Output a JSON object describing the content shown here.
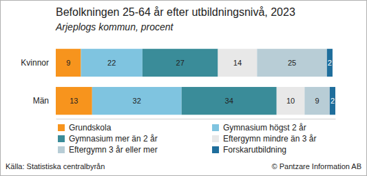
{
  "chart_data": {
    "type": "bar",
    "title": "Befolkningen 25-64 år efter utbildningsnivå, 2023",
    "subtitle": "Arjeplogs kommun, procent",
    "annotations": [
      "Källa: Statistiska centralbyrån",
      "© Pantzare Information AB"
    ],
    "orientation": "horizontal",
    "stacked": true,
    "data_labels": true,
    "tick_labels": "y",
    "grid": false,
    "legend": "bottom",
    "xlim": [
      0,
      100
    ],
    "categories": [
      "Kvinnor",
      "Män"
    ],
    "series": [
      {
        "name": "Grundskola",
        "color": "#f7941d",
        "values": [
          9,
          13
        ]
      },
      {
        "name": "Gymnasium högst 2 år",
        "color": "#7fc4e0",
        "values": [
          22,
          32
        ]
      },
      {
        "name": "Gymnasium mer än 2 år",
        "color": "#3a8c99",
        "values": [
          27,
          34
        ]
      },
      {
        "name": "Eftergymn mindre än 3 år",
        "color": "#e8e8e8",
        "values": [
          14,
          10
        ]
      },
      {
        "name": "Eftergymn 3 år eller mer",
        "color": "#b8cdd6",
        "values": [
          25,
          9
        ]
      },
      {
        "name": "Forskarutbildning",
        "color": "#1f6e9c",
        "values": [
          2,
          2
        ]
      }
    ]
  }
}
